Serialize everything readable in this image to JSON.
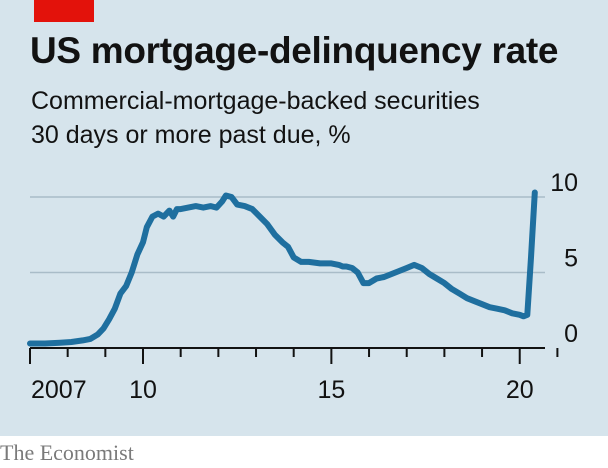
{
  "header": {
    "title": "US mortgage-delinquency rate",
    "subtitle_line1": "Commercial-mortgage-backed securities",
    "subtitle_line2": "30 days or more past due, %"
  },
  "footer": {
    "source": "The Economist"
  },
  "colors": {
    "line": "#1f6f9f",
    "accent": "#e3120b",
    "background": "#d6e4ec",
    "gridline": "#a9bcc8"
  },
  "chart_data": {
    "type": "line",
    "title": "US mortgage-delinquency rate",
    "subtitle": "Commercial-mortgage-backed securities 30 days or more past due, %",
    "xlabel": "",
    "ylabel": "",
    "xlim": [
      2007.0,
      2021.6
    ],
    "ylim": [
      0,
      10
    ],
    "x_ticks": [
      2007,
      2010,
      2015,
      2020
    ],
    "x_tick_labels": [
      "2007",
      "10",
      "15",
      "20"
    ],
    "y_ticks": [
      0,
      5,
      10
    ],
    "y_tick_labels": [
      "0",
      "5",
      "10"
    ],
    "grid": true,
    "series": [
      {
        "x": [
          2007.0,
          2007.4,
          2007.8,
          2008.1,
          2008.4,
          2008.6,
          2008.8,
          2008.95,
          2009.1,
          2009.25,
          2009.4,
          2009.55,
          2009.7,
          2009.85,
          2010.0,
          2010.1,
          2010.25,
          2010.4,
          2010.55,
          2010.7,
          2010.8,
          2010.9,
          2011.0,
          2011.2,
          2011.4,
          2011.6,
          2011.8,
          2011.95,
          2012.1,
          2012.2,
          2012.35,
          2012.5,
          2012.7,
          2012.9,
          2013.1,
          2013.3,
          2013.5,
          2013.7,
          2013.85,
          2014.0,
          2014.2,
          2014.4,
          2014.7,
          2015.0,
          2015.2,
          2015.3,
          2015.4,
          2015.55,
          2015.7,
          2015.85,
          2016.0,
          2016.2,
          2016.4,
          2016.6,
          2016.8,
          2017.0,
          2017.2,
          2017.4,
          2017.6,
          2017.8,
          2018.0,
          2018.2,
          2018.4,
          2018.6,
          2018.8,
          2019.0,
          2019.2,
          2019.4,
          2019.6,
          2019.8,
          2020.0,
          2020.1,
          2020.2,
          2020.3,
          2020.4
        ],
        "y": [
          0.3,
          0.3,
          0.35,
          0.4,
          0.5,
          0.6,
          0.9,
          1.3,
          1.9,
          2.6,
          3.6,
          4.1,
          5.0,
          6.2,
          7.0,
          8.0,
          8.7,
          8.9,
          8.7,
          9.1,
          8.7,
          9.2,
          9.2,
          9.3,
          9.4,
          9.3,
          9.4,
          9.3,
          9.7,
          10.1,
          10.0,
          9.5,
          9.4,
          9.2,
          8.7,
          8.2,
          7.5,
          7.0,
          6.7,
          6.0,
          5.7,
          5.7,
          5.6,
          5.6,
          5.5,
          5.4,
          5.4,
          5.3,
          5.0,
          4.3,
          4.3,
          4.6,
          4.7,
          4.9,
          5.1,
          5.3,
          5.5,
          5.3,
          4.9,
          4.6,
          4.3,
          3.9,
          3.6,
          3.3,
          3.1,
          2.9,
          2.7,
          2.6,
          2.5,
          2.3,
          2.2,
          2.1,
          2.2,
          6.0,
          10.3
        ]
      }
    ]
  }
}
